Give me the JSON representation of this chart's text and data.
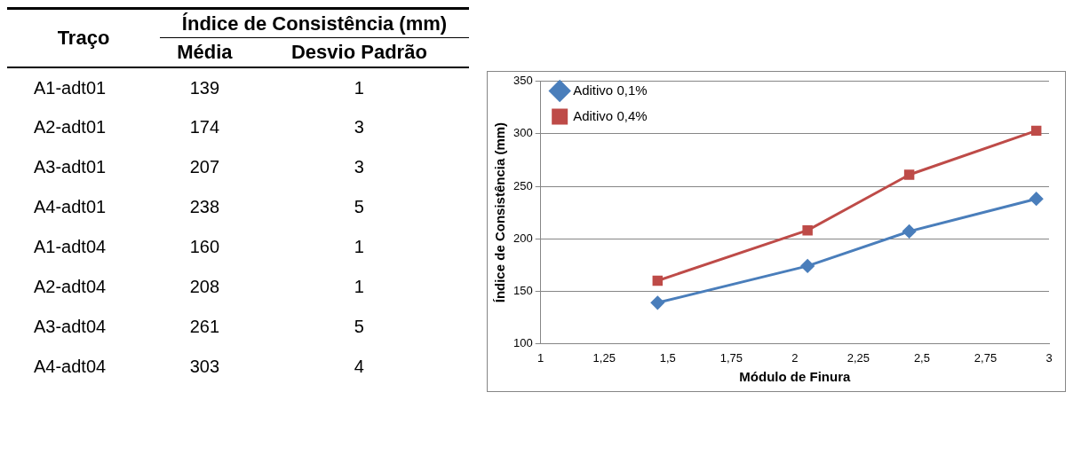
{
  "chart_data": [
    {
      "type": "other",
      "title": "Índice de Consistência (mm)",
      "xlabel": "Traço",
      "categories": [
        "A1-adt01",
        "A2-adt01",
        "A3-adt01",
        "A4-adt01",
        "A1-adt04",
        "A2-adt04",
        "A3-adt04",
        "A4-adt04"
      ],
      "data_labels": true,
      "series": [
        {
          "name": "Média",
          "values": [
            139,
            174,
            207,
            238,
            160,
            208,
            261,
            303
          ]
        },
        {
          "name": "Desvio Padrão",
          "values": [
            1,
            3,
            3,
            5,
            1,
            1,
            5,
            4
          ]
        }
      ]
    },
    {
      "type": "line",
      "xlabel": "Módulo de Finura",
      "ylabel": "Índice de Consistência (mm)",
      "xlim": [
        1,
        3
      ],
      "xticks": [
        1,
        {
          "value": 1.25,
          "label": "1,25"
        },
        {
          "value": 1.5,
          "label": "1,5"
        },
        {
          "value": 1.75,
          "label": "1,75"
        },
        2,
        {
          "value": 2.25,
          "label": "2,25"
        },
        {
          "value": 2.5,
          "label": "2,5"
        },
        {
          "value": 2.75,
          "label": "2,75"
        },
        3
      ],
      "ylim": [
        100,
        350
      ],
      "yticks": [
        100,
        150,
        200,
        250,
        300,
        350
      ],
      "grid": "y",
      "legend": "top left",
      "series": [
        {
          "name": "Aditivo 0,1%",
          "color": "#4a7ebb",
          "marker": "diamond",
          "x": [
            1.46,
            2.05,
            2.45,
            2.95
          ],
          "values": [
            139,
            174,
            207,
            238
          ]
        },
        {
          "name": "Aditivo 0,4%",
          "color": "#be4b48",
          "marker": "square",
          "x": [
            1.46,
            2.05,
            2.45,
            2.95
          ],
          "values": [
            160,
            208,
            261,
            303
          ]
        }
      ]
    }
  ]
}
